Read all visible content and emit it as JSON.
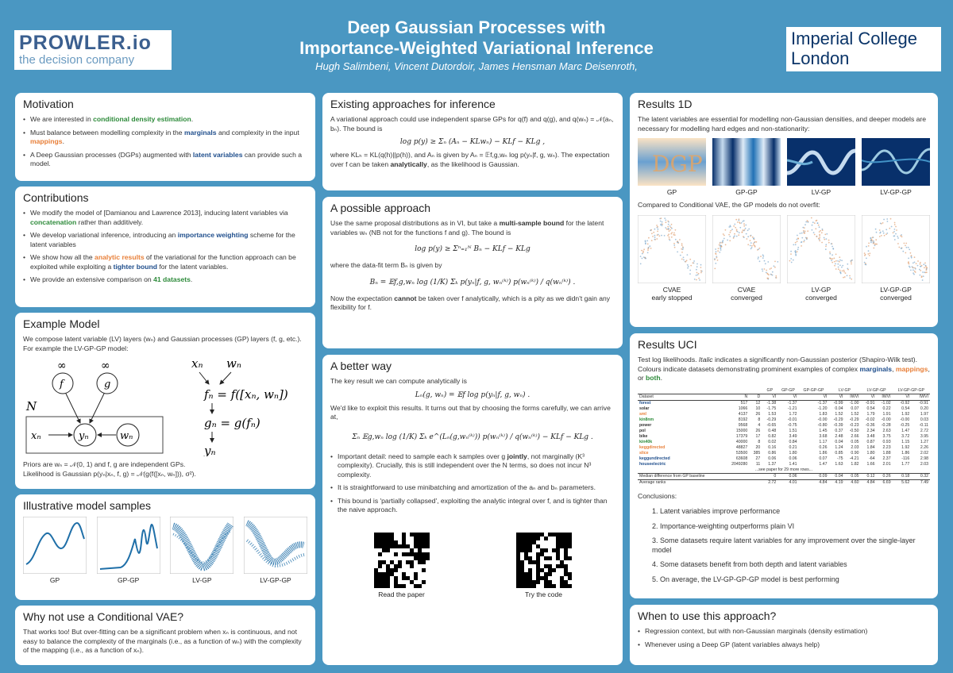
{
  "header": {
    "logo_left_main": "PROWLER.io",
    "logo_left_sub": "the decision company",
    "title_line1": "Deep Gaussian Processes with",
    "title_line2": "Importance-Weighted Variational Inference",
    "authors": "Hugh Salimbeni, Vincent Dutordoir, James Hensman Marc Deisenroth,",
    "logo_right_line1": "Imperial College",
    "logo_right_line2": "London"
  },
  "motivation": {
    "title": "Motivation",
    "b1_pre": "We are interested in ",
    "b1_hl": "conditional density estimation",
    "b1_post": ".",
    "b2_pre": "Must balance between modelling complexity in the ",
    "b2_hl1": "marginals",
    "b2_mid": " and complexity in the input ",
    "b2_hl2": "mappings",
    "b2_post": ".",
    "b3_pre": "A Deep Gaussian processes (DGPs) augmented with ",
    "b3_hl": "latent variables",
    "b3_post": " can provide such a model."
  },
  "contributions": {
    "title": "Contributions",
    "b1_pre": "We modify the model of [Damianou and Lawrence 2013], inducing latent variables via ",
    "b1_hl": "concatenation",
    "b1_post": " rather than additively.",
    "b2_pre": "We develop variational inference, introducing an ",
    "b2_hl": "importance weighting",
    "b2_post": " scheme for the latent variables",
    "b3_pre": "We show how all the ",
    "b3_hl1": "analytic results",
    "b3_mid": " of the variational for the function approach can be exploited while exploiting a ",
    "b3_hl2": "tighter bound",
    "b3_post": " for the latent variables.",
    "b4_pre": "We provide an extensive comparison on ",
    "b4_hl": "41 datasets",
    "b4_post": "."
  },
  "example": {
    "title": "Example Model",
    "text": "We compose latent variable (LV) layers (wₙ) and Gaussian processes (GP) layers (f, g, etc.). For example the LV-GP-GP model:",
    "inf1": "∞",
    "inf2": "∞",
    "node_f": "f",
    "node_g": "g",
    "node_x": "xₙ",
    "node_y": "yₙ",
    "node_w": "wₙ",
    "plate": "N",
    "eq_top_x": "xₙ",
    "eq_top_w": "wₙ",
    "eq1": "fₙ = f([xₙ, wₙ])",
    "eq2": "gₙ = g(fₙ)",
    "eq_y": "yₙ",
    "priors": "Priors are wₙ = 𝒩(0, 1) and f, g are independent GPs.",
    "likelihood": "Likelihood is Gaussian p(yₙ|xₙ, f, g) = 𝒩(g(f([xₙ, wₙ])), σ²)."
  },
  "illustrative": {
    "title": "Illustrative model samples",
    "captions": [
      "GP",
      "GP-GP",
      "LV-GP",
      "LV-GP-GP"
    ]
  },
  "cvae": {
    "title": "Why not use a Conditional VAE?",
    "text": "That works too! But over-fitting can be a significant problem when xₙ is continuous, and not easy to balance the complexity of the marginals (i.e., as a function of wₙ) with the complexity of the mapping (i.e., as a function of xₙ)."
  },
  "existing": {
    "title": "Existing approaches for inference",
    "p1": "A variational approach could use independent sparse GPs for q(f) and q(g), and q(wₙ) = 𝒩(aₙ, bₙ). The bound is",
    "eq": "log p(y) ≥ Σₙ (Aₙ − KLwₙ) − KLf − KLg ,",
    "p2_pre": "where KLₕ = KL(q(h)||p(h)), and Aₙ is given by Aₙ = 𝔼f,g,wₙ log p(yₙ|f, g, wₙ). The expectation over f can be taken ",
    "p2_hl": "analytically",
    "p2_post": ", as the likelihood is Gaussian."
  },
  "possible": {
    "title": "A possible approach",
    "p1_pre": "Use the same proposal distributions as in VI, but take a ",
    "p1_hl": "multi-sample bound",
    "p1_post": " for the latent variables wₙ (NB not for the functions f and g). The bound is",
    "eq1": "log p(y) ≥ Σⁿ₌₁ᴺ Bₙ − KLf − KLg",
    "p2": "where the data-fit term Bₙ is given by",
    "eq2": "Bₙ = 𝔼f,g,wₙ log (1/K) Σₖ p(yₙ|f, g, wₙ⁽ᵏ⁾) p(wₙ⁽ᵏ⁾) / q(wₙ⁽ᵏ⁾) .",
    "p3_pre": "Now the expectation ",
    "p3_hl": "cannot",
    "p3_post": " be taken over f analytically, which is a pity as we didn't gain any flexibility for f."
  },
  "better": {
    "title": "A better way",
    "p1": "The key result we can compute analytically is",
    "eq1": "Lₙ(g, wₙ) = 𝔼f log p(yₙ|f, g, wₙ) .",
    "p2": "We'd like to exploit this results. It turns out that by choosing the forms carefully, we can arrive at,",
    "eq2": "Σₙ 𝔼g,wₙ log (1/K) Σₖ e^(Lₙ(g,wₙ⁽ᵏ⁾)) p(wₙ⁽ᵏ⁾) / q(wₙ⁽ᵏ⁾) − KLf − KLg .",
    "b1_pre": "Important detail: need to sample each k samples over g ",
    "b1_hl": "jointly",
    "b1_post": ", not marginally (K³ complexity). Crucially, this is still independent over the N terms, so does not incur N³ complexity.",
    "b2": "It is straightforward to use minibatching and amortization of the aₙ and bₙ parameters.",
    "b3": "This bound is 'partially collapsed', exploiting the analytic integral over f, and is tighter than the naive approach."
  },
  "qr": {
    "paper_caption": "Read the paper",
    "code_caption": "Try the code"
  },
  "results1d": {
    "title": "Results 1D",
    "text": "The latent variables are essential for modelling non-Gaussian densities, and deeper models are necessary for modelling hard edges and non-stationarity:",
    "dgp_text": "DGP",
    "captions": [
      "GP",
      "GP-GP",
      "LV-GP",
      "LV-GP-GP"
    ],
    "text2": "Compared to Conditional VAE, the GP models do not overfit:",
    "captions2": [
      {
        "l1": "CVAE",
        "l2": "early stopped"
      },
      {
        "l1": "CVAE",
        "l2": "converged"
      },
      {
        "l1": "LV-GP",
        "l2": "converged"
      },
      {
        "l1": "LV-GP-GP",
        "l2": "converged"
      }
    ]
  },
  "uci": {
    "title": "Results UCI",
    "text_pre": "Test log likelihoods. ",
    "text_italic": "Italic",
    "text_mid": " indicates a significantly non-Gaussian posterior (Shapiro-Wilk test). Colours indicate datasets demonstrating prominent examples of complex ",
    "hl_marginals": "marginals",
    "sep1": ", ",
    "hl_mappings": "mappings",
    "sep2": ", or ",
    "hl_both": "both",
    "text_post": ".",
    "group_headers": [
      "GP",
      "GP-GP",
      "GP-GP-GP",
      "LV-GP",
      "LV-GP-GP",
      "LV-GP-GP-GP"
    ],
    "headers": [
      "Dataset",
      "N",
      "D",
      "VI",
      "VI",
      "VI",
      "VI",
      "IWVI",
      "VI",
      "IWVI",
      "VI",
      "IWVI"
    ],
    "rows": [
      {
        "c": "#1f4e8c",
        "cells": [
          "forest",
          "517",
          "12",
          "-1.38",
          "-1.37",
          "-1.37",
          "-0.99",
          "-1.00",
          "-0.91",
          "-1.02",
          "-0.92",
          "-0.91"
        ]
      },
      {
        "c": "#333333",
        "cells": [
          "solar",
          "1066",
          "10",
          "-1.75",
          "-1.21",
          "-1.20",
          "0.04",
          "0.07",
          "0.54",
          "0.22",
          "0.54",
          "0.20"
        ]
      },
      {
        "c": "#e8803a",
        "cells": [
          "sml",
          "4137",
          "26",
          "1.53",
          "1.72",
          "1.83",
          "1.52",
          "1.52",
          "1.79",
          "1.91",
          "1.92",
          "1.97"
        ]
      },
      {
        "c": "#2e8b3b",
        "cells": [
          "kin8nm",
          "8192",
          "8",
          "-0.29",
          "-0.01",
          "-0.00",
          "-0.29",
          "-0.29",
          "-0.02",
          "-0.00",
          "-0.00",
          "0.03"
        ]
      },
      {
        "c": "#333333",
        "cells": [
          "power",
          "9568",
          "4",
          "-0.65",
          "-0.75",
          "-0.80",
          "-0.39",
          "-0.23",
          "-0.36",
          "-0.28",
          "-0.25",
          "-0.11"
        ]
      },
      {
        "c": "#333333",
        "cells": [
          "pol",
          "15000",
          "26",
          "0.48",
          "1.51",
          "1.45",
          "0.37",
          "-0.50",
          "2.34",
          "2.63",
          "1.47",
          "2.72"
        ]
      },
      {
        "c": "#333333",
        "cells": [
          "bike",
          "17379",
          "17",
          "0.82",
          "3.49",
          "3.68",
          "2.48",
          "2.66",
          "3.48",
          "3.75",
          "3.72",
          "3.95"
        ]
      },
      {
        "c": "#2e8b3b",
        "cells": [
          "kin40k",
          "40000",
          "8",
          "0.02",
          "0.84",
          "1.17",
          "0.04",
          "0.05",
          "0.87",
          "0.93",
          "1.15",
          "1.27"
        ]
      },
      {
        "c": "#e8803a",
        "cells": [
          "keggdirected",
          "48827",
          "20",
          "0.16",
          "0.21",
          "0.26",
          "1.24",
          "2.03",
          "1.84",
          "2.23",
          "1.92",
          "2.26"
        ]
      },
      {
        "c": "#e8803a",
        "cells": [
          "slice",
          "53500",
          "385",
          "0.86",
          "1.80",
          "1.86",
          "0.85",
          "0.90",
          "1.80",
          "1.88",
          "1.86",
          "2.02"
        ]
      },
      {
        "c": "#1f4e8c",
        "cells": [
          "keggundirected",
          "63608",
          "27",
          "0.06",
          "0.06",
          "0.07",
          "-75",
          "-4.21",
          "-64",
          "2.37",
          "-116",
          "2.98"
        ]
      },
      {
        "c": "#1f4e8c",
        "cells": [
          "houseelectric",
          "2049280",
          "11",
          "1.37",
          "1.41",
          "1.47",
          "1.63",
          "1.82",
          "1.66",
          "2.01",
          "1.77",
          "2.03"
        ]
      }
    ],
    "see_paper": "...see paper for 29 more rows...",
    "footer": [
      [
        "Median difference from GP baseline",
        "",
        "",
        "0",
        "0.06",
        "0.09",
        "0.04",
        "0.05",
        "0.12",
        "0.26",
        "0.18",
        "0.32"
      ],
      [
        "Average ranks",
        "",
        "",
        "2.72",
        "4.01",
        "4.84",
        "4.19",
        "4.60",
        "4.84",
        "6.69",
        "5.62",
        "7.49"
      ]
    ],
    "conclusions_title": "Conclusions:",
    "conclusions": [
      "1. Latent variables improve performance",
      "2. Importance-weighting outperforms plain VI",
      "3. Some datasets require latent variables for any improvement over the single-layer model",
      "4. Some datasets benefit from both depth and latent variables",
      "5. On average, the LV-GP-GP-GP model is best performing"
    ]
  },
  "when": {
    "title": "When to use this approach?",
    "b1": "Regression context, but with non-Gaussian marginals (density estimation)",
    "b2": "Whenever using a Deep GP (latent variables always help)"
  }
}
